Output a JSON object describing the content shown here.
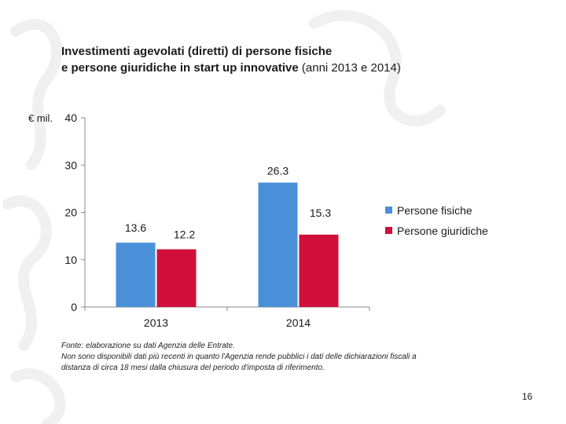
{
  "slide": {
    "title_line1": "Investimenti agevolati (diretti) di persone fisiche",
    "title_line2_bold": "e persone giuridiche in start up innovative",
    "title_line2_light": " (anni 2013 e 2014)",
    "footnote_line1": "Fonte: elaborazione su dati Agenzia delle Entrate.",
    "footnote_line2": "Non sono disponibili dati più recenti in quanto l'Agenzia rende pubblici i dati delle dichiarazioni fiscali a",
    "footnote_line3": "distanza di circa 18 mesi dalla chiusura del periodo d'imposta di riferimento.",
    "page_number": "16"
  },
  "chart_data": {
    "type": "bar",
    "title": "Investimenti agevolati (diretti) di persone fisiche e persone giuridiche in start up innovative (anni 2013 e 2014)",
    "ylabel": "€ mil.",
    "xlabel": "",
    "categories": [
      "2013",
      "2014"
    ],
    "ylim": [
      0,
      40
    ],
    "yticks": [
      0,
      10,
      20,
      30,
      40
    ],
    "grid": false,
    "legend_position": "right",
    "series": [
      {
        "name": "Persone fisiche",
        "values": [
          13.6,
          26.3
        ],
        "color": "#4a90d9"
      },
      {
        "name": "Persone giuridiche",
        "values": [
          12.2,
          15.3
        ],
        "color": "#d0103a"
      }
    ]
  }
}
